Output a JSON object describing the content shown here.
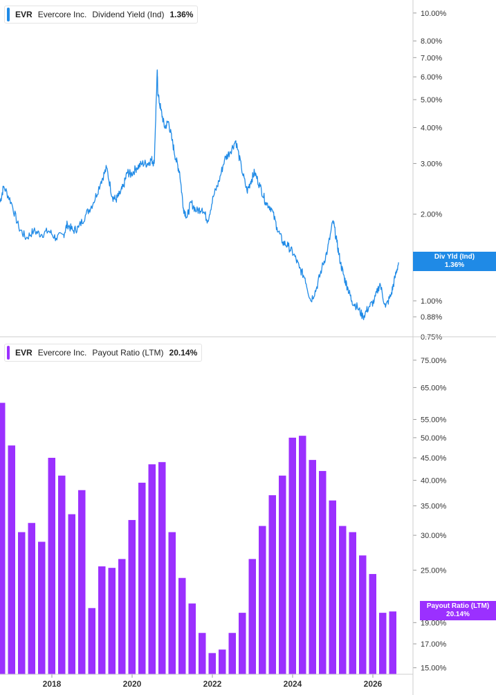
{
  "colors": {
    "yield_line": "#1f8ae6",
    "payout_bar": "#9b30ff",
    "grid": "#dddddd",
    "axis_text": "#333333"
  },
  "legend_top": {
    "ticker": "EVR",
    "company": "Evercore Inc.",
    "metric": "Dividend Yield (Ind)",
    "value": "1.36%"
  },
  "legend_bottom": {
    "ticker": "EVR",
    "company": "Evercore Inc.",
    "metric": "Payout Ratio (LTM)",
    "value": "20.14%"
  },
  "tag_top": {
    "label": "Div Yld (Ind)",
    "value": "1.36%"
  },
  "tag_bottom": {
    "label": "Payout Ratio (LTM)",
    "value": "20.14%"
  },
  "chart_data": [
    {
      "type": "line",
      "scale": "log",
      "ylim": [
        0.75,
        10.5
      ],
      "y_ticks": [
        10.0,
        8.0,
        7.0,
        6.0,
        5.0,
        4.0,
        3.0,
        2.0,
        1.0,
        0.88,
        0.75
      ],
      "y_tick_labels": [
        "10.00%",
        "8.00%",
        "7.00%",
        "6.00%",
        "5.00%",
        "4.00%",
        "3.00%",
        "2.00%",
        "1.00%",
        "0.88%",
        "0.75%"
      ],
      "series": [
        {
          "name": "Dividend Yield (Ind)",
          "x": [
            2016.0,
            2016.1,
            2016.3,
            2016.5,
            2016.7,
            2016.9,
            2017.1,
            2017.3,
            2017.5,
            2017.7,
            2017.8,
            2017.95,
            2018.1,
            2018.3,
            2018.5,
            2018.7,
            2018.85,
            2019.0,
            2019.1,
            2019.2,
            2019.3,
            2019.4,
            2019.5,
            2019.65,
            2019.8,
            2019.95,
            2020.05,
            2020.12,
            2020.2,
            2020.22,
            2020.3,
            2020.4,
            2020.5,
            2020.6,
            2020.7,
            2020.8,
            2020.9,
            2021.0,
            2021.1,
            2021.25,
            2021.4,
            2021.55,
            2021.7,
            2021.85,
            2022.0,
            2022.15,
            2022.3,
            2022.45,
            2022.6,
            2022.7,
            2022.8,
            2022.95,
            2023.1,
            2023.25,
            2023.4,
            2023.55,
            2023.7,
            2023.85,
            2024.0,
            2024.15,
            2024.3,
            2024.45,
            2024.6,
            2024.75,
            2024.9,
            2025.0,
            2025.1,
            2025.2,
            2025.3,
            2025.4,
            2025.55,
            2025.7,
            2025.85,
            2026.0,
            2026.15,
            2026.3,
            2026.45,
            2026.55,
            2026.65
          ],
          "values": [
            2.2,
            2.5,
            2.2,
            1.8,
            1.65,
            1.75,
            1.7,
            1.75,
            1.65,
            1.7,
            1.85,
            1.75,
            1.8,
            2.0,
            2.2,
            2.6,
            2.9,
            2.3,
            2.25,
            2.35,
            2.5,
            2.8,
            2.75,
            2.9,
            3.0,
            3.0,
            3.1,
            3.0,
            6.3,
            5.2,
            4.6,
            4.0,
            4.2,
            3.6,
            3.1,
            2.8,
            2.1,
            1.95,
            2.2,
            2.05,
            2.1,
            1.9,
            2.3,
            2.6,
            3.1,
            3.3,
            3.6,
            2.9,
            2.4,
            2.6,
            2.8,
            2.5,
            2.2,
            2.1,
            1.8,
            1.6,
            1.55,
            1.45,
            1.3,
            1.2,
            1.0,
            1.1,
            1.3,
            1.5,
            1.9,
            1.6,
            1.35,
            1.2,
            1.1,
            1.0,
            0.95,
            0.88,
            0.95,
            1.0,
            1.15,
            0.95,
            1.05,
            1.2,
            1.36
          ]
        }
      ]
    },
    {
      "type": "bar",
      "scale": "log",
      "ylim": [
        14.5,
        78
      ],
      "y_ticks": [
        75,
        65,
        55,
        50,
        45,
        40,
        35,
        30,
        25,
        19,
        17,
        15
      ],
      "y_tick_labels": [
        "75.00%",
        "65.00%",
        "55.00%",
        "50.00%",
        "45.00%",
        "40.00%",
        "35.00%",
        "30.00%",
        "25.00%",
        "19.00%",
        "17.00%",
        "15.00%"
      ],
      "x_tick_labels": [
        "2018",
        "2020",
        "2022",
        "2024",
        "2026"
      ],
      "series": [
        {
          "name": "Payout Ratio (LTM)",
          "values": [
            60,
            48,
            30.5,
            32,
            29,
            45,
            41,
            33.5,
            38,
            20.5,
            25.5,
            25.3,
            26.5,
            32.5,
            39.5,
            43.5,
            44,
            30.5,
            24,
            21,
            18,
            16.2,
            16.5,
            18,
            20,
            26.5,
            31.5,
            37,
            41,
            50,
            50.5,
            44.5,
            42,
            36,
            31.5,
            30.5,
            27,
            24.5,
            20,
            20.14
          ]
        }
      ]
    }
  ]
}
